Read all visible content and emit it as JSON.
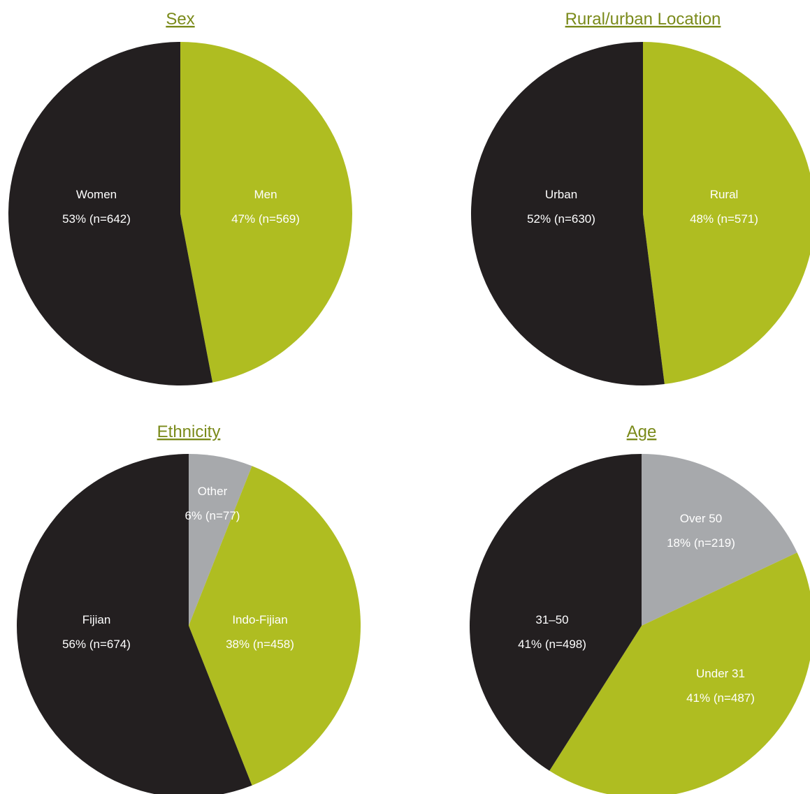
{
  "colors": {
    "black": "#231f20",
    "green": "#afbd21",
    "grey": "#a7a9ac",
    "title": "#7a8a1a",
    "label_light": "#ffffff",
    "label_grey_bg": "#ffffff",
    "label_green_bg": "#ffffff"
  },
  "chart_data": [
    {
      "type": "pie",
      "title": "Sex",
      "start": "12 o'clock",
      "direction": "clockwise",
      "slices": [
        {
          "name": "Men",
          "value": 47,
          "n": 569,
          "label": "Men",
          "sublabel": "47% (n=569)",
          "color": "#afbd21"
        },
        {
          "name": "Women",
          "value": 53,
          "n": 642,
          "label": "Women",
          "sublabel": "53% (n=642)",
          "color": "#231f20"
        }
      ]
    },
    {
      "type": "pie",
      "title": "Rural/urban Location",
      "start": "12 o'clock",
      "direction": "clockwise",
      "slices": [
        {
          "name": "Rural",
          "value": 48,
          "n": 571,
          "label": "Rural",
          "sublabel": "48% (n=571)",
          "color": "#afbd21"
        },
        {
          "name": "Urban",
          "value": 52,
          "n": 630,
          "label": "Urban",
          "sublabel": "52% (n=630)",
          "color": "#231f20"
        }
      ]
    },
    {
      "type": "pie",
      "title": "Ethnicity",
      "start": "12 o'clock",
      "direction": "clockwise",
      "slices": [
        {
          "name": "Other",
          "value": 6,
          "n": 77,
          "label": "Other",
          "sublabel": "6% (n=77)",
          "color": "#a7a9ac"
        },
        {
          "name": "Indo-Fijian",
          "value": 38,
          "n": 458,
          "label": "Indo-Fijian",
          "sublabel": "38% (n=458)",
          "color": "#afbd21"
        },
        {
          "name": "Fijian",
          "value": 56,
          "n": 674,
          "label": "Fijian",
          "sublabel": "56% (n=674)",
          "color": "#231f20"
        }
      ]
    },
    {
      "type": "pie",
      "title": "Age",
      "start": "12 o'clock",
      "direction": "clockwise",
      "slices": [
        {
          "name": "Over 50",
          "value": 18,
          "n": 219,
          "label": "Over 50",
          "sublabel": "18% (n=219)",
          "color": "#a7a9ac"
        },
        {
          "name": "Under 31",
          "value": 41,
          "n": 487,
          "label": "Under 31",
          "sublabel": "41% (n=487)",
          "color": "#afbd21"
        },
        {
          "name": "31–50",
          "value": 41,
          "n": 498,
          "label": "31–50",
          "sublabel": "41% (n=498)",
          "color": "#231f20"
        }
      ]
    }
  ]
}
